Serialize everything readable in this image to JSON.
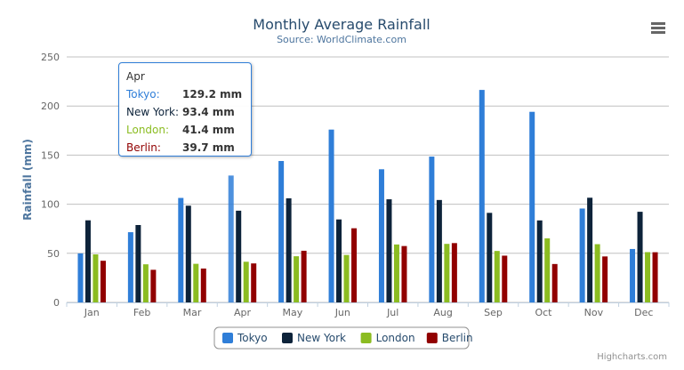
{
  "chart_data": {
    "type": "bar",
    "title": "Monthly Average Rainfall",
    "subtitle": "Source: WorldClimate.com",
    "xlabel": "",
    "ylabel": "Rainfall (mm)",
    "ylim": [
      0,
      250
    ],
    "yticks": [
      "0",
      "50",
      "100",
      "150",
      "200",
      "250"
    ],
    "grid": true,
    "legend_placement": "bottom",
    "categories": [
      "Jan",
      "Feb",
      "Mar",
      "Apr",
      "May",
      "Jun",
      "Jul",
      "Aug",
      "Sep",
      "Oct",
      "Nov",
      "Dec"
    ],
    "series": [
      {
        "name": "Tokyo",
        "color": "#2f7ed8",
        "values": [
          49.9,
          71.5,
          106.4,
          129.2,
          144.0,
          176.0,
          135.6,
          148.5,
          216.4,
          194.1,
          95.6,
          54.4
        ]
      },
      {
        "name": "New York",
        "color": "#0d233a",
        "values": [
          83.6,
          78.8,
          98.5,
          93.4,
          106.0,
          84.5,
          105.0,
          104.3,
          91.2,
          83.5,
          106.6,
          92.3
        ]
      },
      {
        "name": "London",
        "color": "#8bbc21",
        "values": [
          48.9,
          38.8,
          39.3,
          41.4,
          47.0,
          48.3,
          59.0,
          59.6,
          52.4,
          65.2,
          59.3,
          51.2
        ]
      },
      {
        "name": "Berlin",
        "color": "#910000",
        "values": [
          42.4,
          33.2,
          34.5,
          39.7,
          52.6,
          75.5,
          57.4,
          60.4,
          47.6,
          39.1,
          46.8,
          51.1
        ]
      }
    ]
  },
  "tooltip": {
    "header": "Apr",
    "rows": [
      {
        "name": "Tokyo:",
        "value": "129.2 mm",
        "color": "#2f7ed8"
      },
      {
        "name": "New York:",
        "value": "93.4 mm",
        "color": "#0d233a"
      },
      {
        "name": "London:",
        "value": "41.4 mm",
        "color": "#8bbc21"
      },
      {
        "name": "Berlin:",
        "value": "39.7 mm",
        "color": "#910000"
      }
    ]
  },
  "credits": "Highcharts.com",
  "menu_icon": "hamburger-menu-icon"
}
